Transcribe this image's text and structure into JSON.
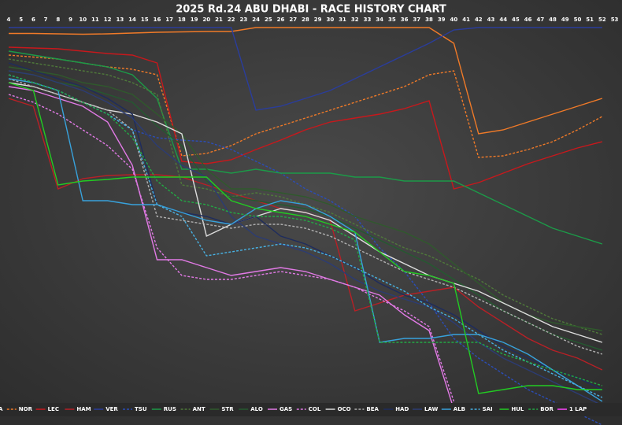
{
  "chart_data": {
    "type": "line",
    "title": "2025 Rd.24 ABU DHABI - RACE HISTORY CHART",
    "x": [
      4,
      6,
      8,
      10,
      12,
      14,
      16,
      18,
      20,
      22,
      24,
      26,
      28,
      30,
      32,
      34,
      36,
      38,
      40,
      42,
      44,
      46,
      48,
      50,
      52
    ],
    "xlim": [
      3.3,
      53.6
    ],
    "xticks": [
      4,
      5,
      6,
      7,
      8,
      9,
      10,
      11,
      12,
      13,
      14,
      15,
      16,
      17,
      18,
      19,
      20,
      21,
      22,
      23,
      24,
      25,
      26,
      27,
      28,
      29,
      30,
      31,
      32,
      33,
      34,
      35,
      36,
      37,
      38,
      39,
      40,
      41,
      42,
      43,
      44,
      45,
      46,
      47,
      48,
      49,
      50,
      51,
      52,
      53
    ],
    "ylim": [
      101,
      0
    ],
    "series": [
      {
        "name": "A",
        "color": "#f07a28",
        "dash": false,
        "values": [
          1.5,
          1.5,
          1.6,
          1.7,
          1.6,
          1.4,
          1.2,
          1.1,
          1,
          1,
          0,
          0,
          0,
          0,
          0,
          0,
          0,
          0,
          4,
          27,
          26,
          24,
          22,
          20,
          18
        ]
      },
      {
        "name": "NOR",
        "color": "#f07a28",
        "dash": true,
        "values": [
          7,
          7.5,
          8,
          9,
          10,
          10.6,
          12,
          32.6,
          32,
          30,
          27,
          25,
          23,
          21,
          19,
          17,
          15,
          12,
          11,
          33,
          32.6,
          31,
          29,
          26,
          22.6
        ]
      },
      {
        "name": "LEC",
        "color": "#c8181c",
        "dash": false,
        "values": [
          5,
          5.2,
          5.4,
          6,
          6.6,
          7,
          9,
          34,
          34.6,
          33.6,
          31,
          28.6,
          26,
          24,
          23,
          22,
          20.6,
          18.6,
          41,
          39.4,
          37,
          34.6,
          32.6,
          30.6,
          29
        ]
      },
      {
        "name": "HAM",
        "color": "#b82026",
        "dash": false,
        "values": [
          18,
          20,
          41,
          38.4,
          37.6,
          37.4,
          37.4,
          38,
          40,
          42,
          44,
          46,
          47,
          49,
          72,
          70,
          68,
          67,
          66,
          71,
          75,
          79,
          82,
          84,
          87
        ]
      },
      {
        "name": "VER",
        "color": "#2a3d9c",
        "dash": false,
        "values": [
          0,
          0,
          0,
          0,
          0,
          0,
          0,
          0,
          0,
          0,
          21,
          20,
          18,
          16,
          13,
          10,
          7,
          4,
          0.6,
          0,
          0,
          0,
          0,
          0,
          0
        ]
      },
      {
        "name": "TSU",
        "color": "#2b4db8",
        "dash": true,
        "values": [
          12,
          14,
          16,
          19,
          22,
          26,
          28,
          28.6,
          29,
          31,
          34,
          37,
          41,
          44,
          48,
          56,
          62,
          70,
          79,
          84,
          88,
          92,
          95,
          98,
          101
        ]
      },
      {
        "name": "RUS",
        "color": "#1c9a48",
        "dash": false,
        "values": [
          6,
          7,
          8,
          9,
          10,
          12,
          18,
          36,
          36,
          37,
          36,
          37,
          37,
          37,
          38,
          38,
          39,
          39,
          39,
          42,
          45,
          48,
          51,
          53,
          55
        ]
      },
      {
        "name": "ANT",
        "color": "#4f7a3a",
        "dash": true,
        "values": [
          8,
          9,
          10,
          11,
          12,
          14,
          17,
          40,
          41,
          43,
          42,
          43,
          45,
          47,
          50,
          53,
          56,
          58,
          61,
          64,
          68,
          71,
          74,
          76,
          78
        ]
      },
      {
        "name": "STR",
        "color": "#2f5a2c",
        "dash": false,
        "values": [
          10,
          11,
          12,
          14,
          15,
          17,
          22,
          27,
          36,
          41,
          41,
          42,
          43,
          45,
          48,
          50,
          52,
          55,
          60,
          65,
          70,
          73,
          75,
          76,
          77
        ]
      },
      {
        "name": "ALO",
        "color": "#245a30",
        "dash": false,
        "values": [
          11,
          12,
          14,
          15,
          17,
          19,
          25,
          30,
          39,
          43,
          44,
          45,
          46,
          48,
          51,
          54,
          57,
          60,
          64,
          68,
          72,
          75,
          78,
          80,
          82
        ]
      },
      {
        "name": "GAS",
        "color": "#e27ae6",
        "dash": false,
        "values": [
          15,
          16,
          18,
          20,
          24,
          35,
          59,
          59,
          61,
          63,
          62,
          61,
          62,
          64,
          66,
          68,
          73,
          77,
          97,
          null,
          null,
          null,
          null,
          null,
          null
        ]
      },
      {
        "name": "COL",
        "color": "#e27ae6",
        "dash": true,
        "values": [
          17,
          19,
          22,
          26,
          30,
          36,
          56,
          63,
          64,
          64,
          63,
          62,
          63,
          64,
          66,
          69,
          72,
          76,
          95,
          null,
          null,
          null,
          null,
          null,
          null
        ]
      },
      {
        "name": "OCO",
        "color": "#dddddd",
        "dash": false,
        "values": [
          14,
          15,
          17,
          19,
          21,
          22,
          24,
          27,
          53,
          50,
          48,
          46,
          47,
          49,
          53,
          57,
          60,
          63,
          65,
          67,
          70,
          73,
          76,
          78,
          80
        ]
      },
      {
        "name": "BEA",
        "color": "#b0b0b0",
        "dash": true,
        "values": [
          13,
          15,
          17,
          19,
          21,
          26,
          48,
          49,
          50,
          51,
          50,
          50,
          51,
          53,
          56,
          59,
          62,
          64,
          66,
          69,
          72,
          75,
          78,
          81,
          83
        ]
      },
      {
        "name": "HAD",
        "color": "#1e2c5e",
        "dash": false,
        "values": [
          9,
          11,
          13,
          15,
          18,
          22,
          45,
          47,
          48,
          50,
          48,
          53,
          55,
          58,
          61,
          65,
          68,
          70,
          73,
          77,
          81,
          84,
          87,
          89,
          92
        ]
      },
      {
        "name": "LAW",
        "color": "#2c3c74",
        "dash": false,
        "values": [
          11,
          12,
          14,
          16,
          19,
          23,
          30,
          35,
          38,
          48,
          53,
          55,
          57,
          60,
          64,
          67,
          69,
          71,
          75,
          80,
          84,
          87,
          90,
          93,
          96
        ]
      },
      {
        "name": "ALB",
        "color": "#38a2dc",
        "dash": false,
        "values": [
          13,
          14,
          16,
          44,
          44,
          45,
          45,
          47,
          49,
          50,
          46,
          44,
          45,
          48,
          52,
          80,
          79,
          79,
          78,
          78,
          80,
          83,
          87,
          91,
          95
        ]
      },
      {
        "name": "SAI",
        "color": "#48b2e4",
        "dash": true,
        "values": [
          12,
          14,
          16,
          19,
          22,
          26,
          45,
          48,
          58,
          57,
          56,
          55,
          56,
          58,
          61,
          64,
          67,
          71,
          74,
          78,
          82,
          85,
          88,
          91,
          94
        ]
      },
      {
        "name": "HUL",
        "color": "#22cc22",
        "dash": false,
        "values": [
          14,
          16,
          40,
          39,
          38.6,
          38,
          38,
          38,
          38,
          44,
          46,
          47,
          48,
          50,
          52,
          57,
          62,
          63,
          65,
          93,
          92,
          91,
          91,
          92,
          92
        ]
      },
      {
        "name": "BOR",
        "color": "#22aa44",
        "dash": true,
        "values": [
          12,
          14,
          16,
          19,
          22,
          28,
          39,
          44,
          45,
          47,
          48,
          48,
          49,
          51,
          54,
          80,
          80,
          80,
          80,
          80,
          83,
          85,
          87,
          89,
          91
        ]
      },
      {
        "name": "1 LAP",
        "color": "#ff44ff",
        "dash": false,
        "values": [
          null,
          null,
          null,
          null,
          null,
          null,
          null,
          null,
          null,
          null,
          null,
          null,
          null,
          null,
          null,
          null,
          null,
          null,
          null,
          null,
          null,
          null,
          null,
          null,
          null
        ]
      }
    ]
  }
}
